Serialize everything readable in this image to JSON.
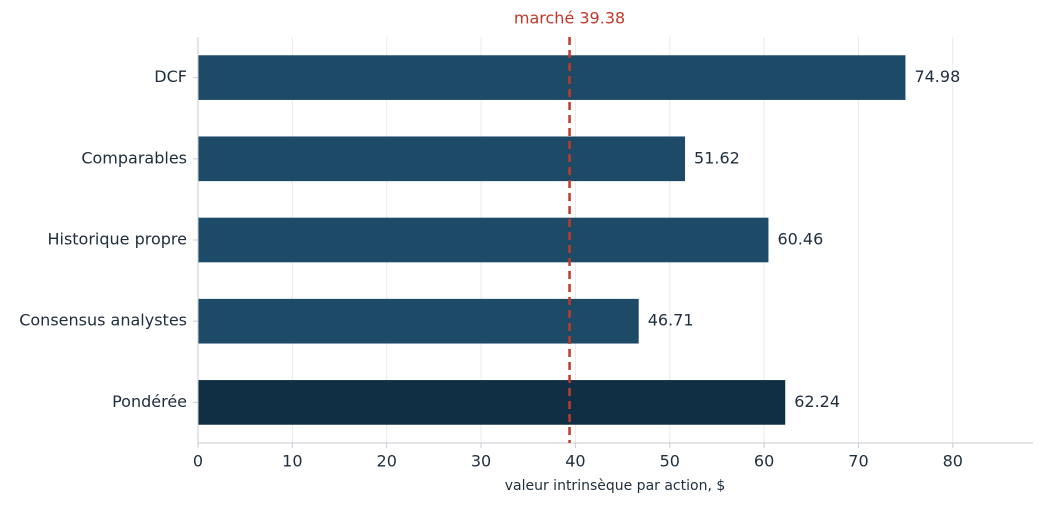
{
  "chart_data": {
    "type": "barh",
    "xlabel": "valeur intrinsèque par action, $",
    "categories": [
      "DCF",
      "Comparables",
      "Historique propre",
      "Consensus analystes",
      "Pondérée"
    ],
    "values": [
      74.98,
      51.62,
      60.46,
      46.71,
      62.24
    ],
    "colors": [
      "#1d4a66",
      "#1d4a66",
      "#1d4a66",
      "#1d4a66",
      "#112f44"
    ],
    "xlim": [
      0,
      88.5
    ],
    "xticks": [
      0,
      10,
      20,
      30,
      40,
      50,
      60,
      70,
      80
    ],
    "grid": true,
    "reference_line": {
      "value": 39.38,
      "label": "marché 39.38",
      "color": "#c0392b"
    }
  }
}
